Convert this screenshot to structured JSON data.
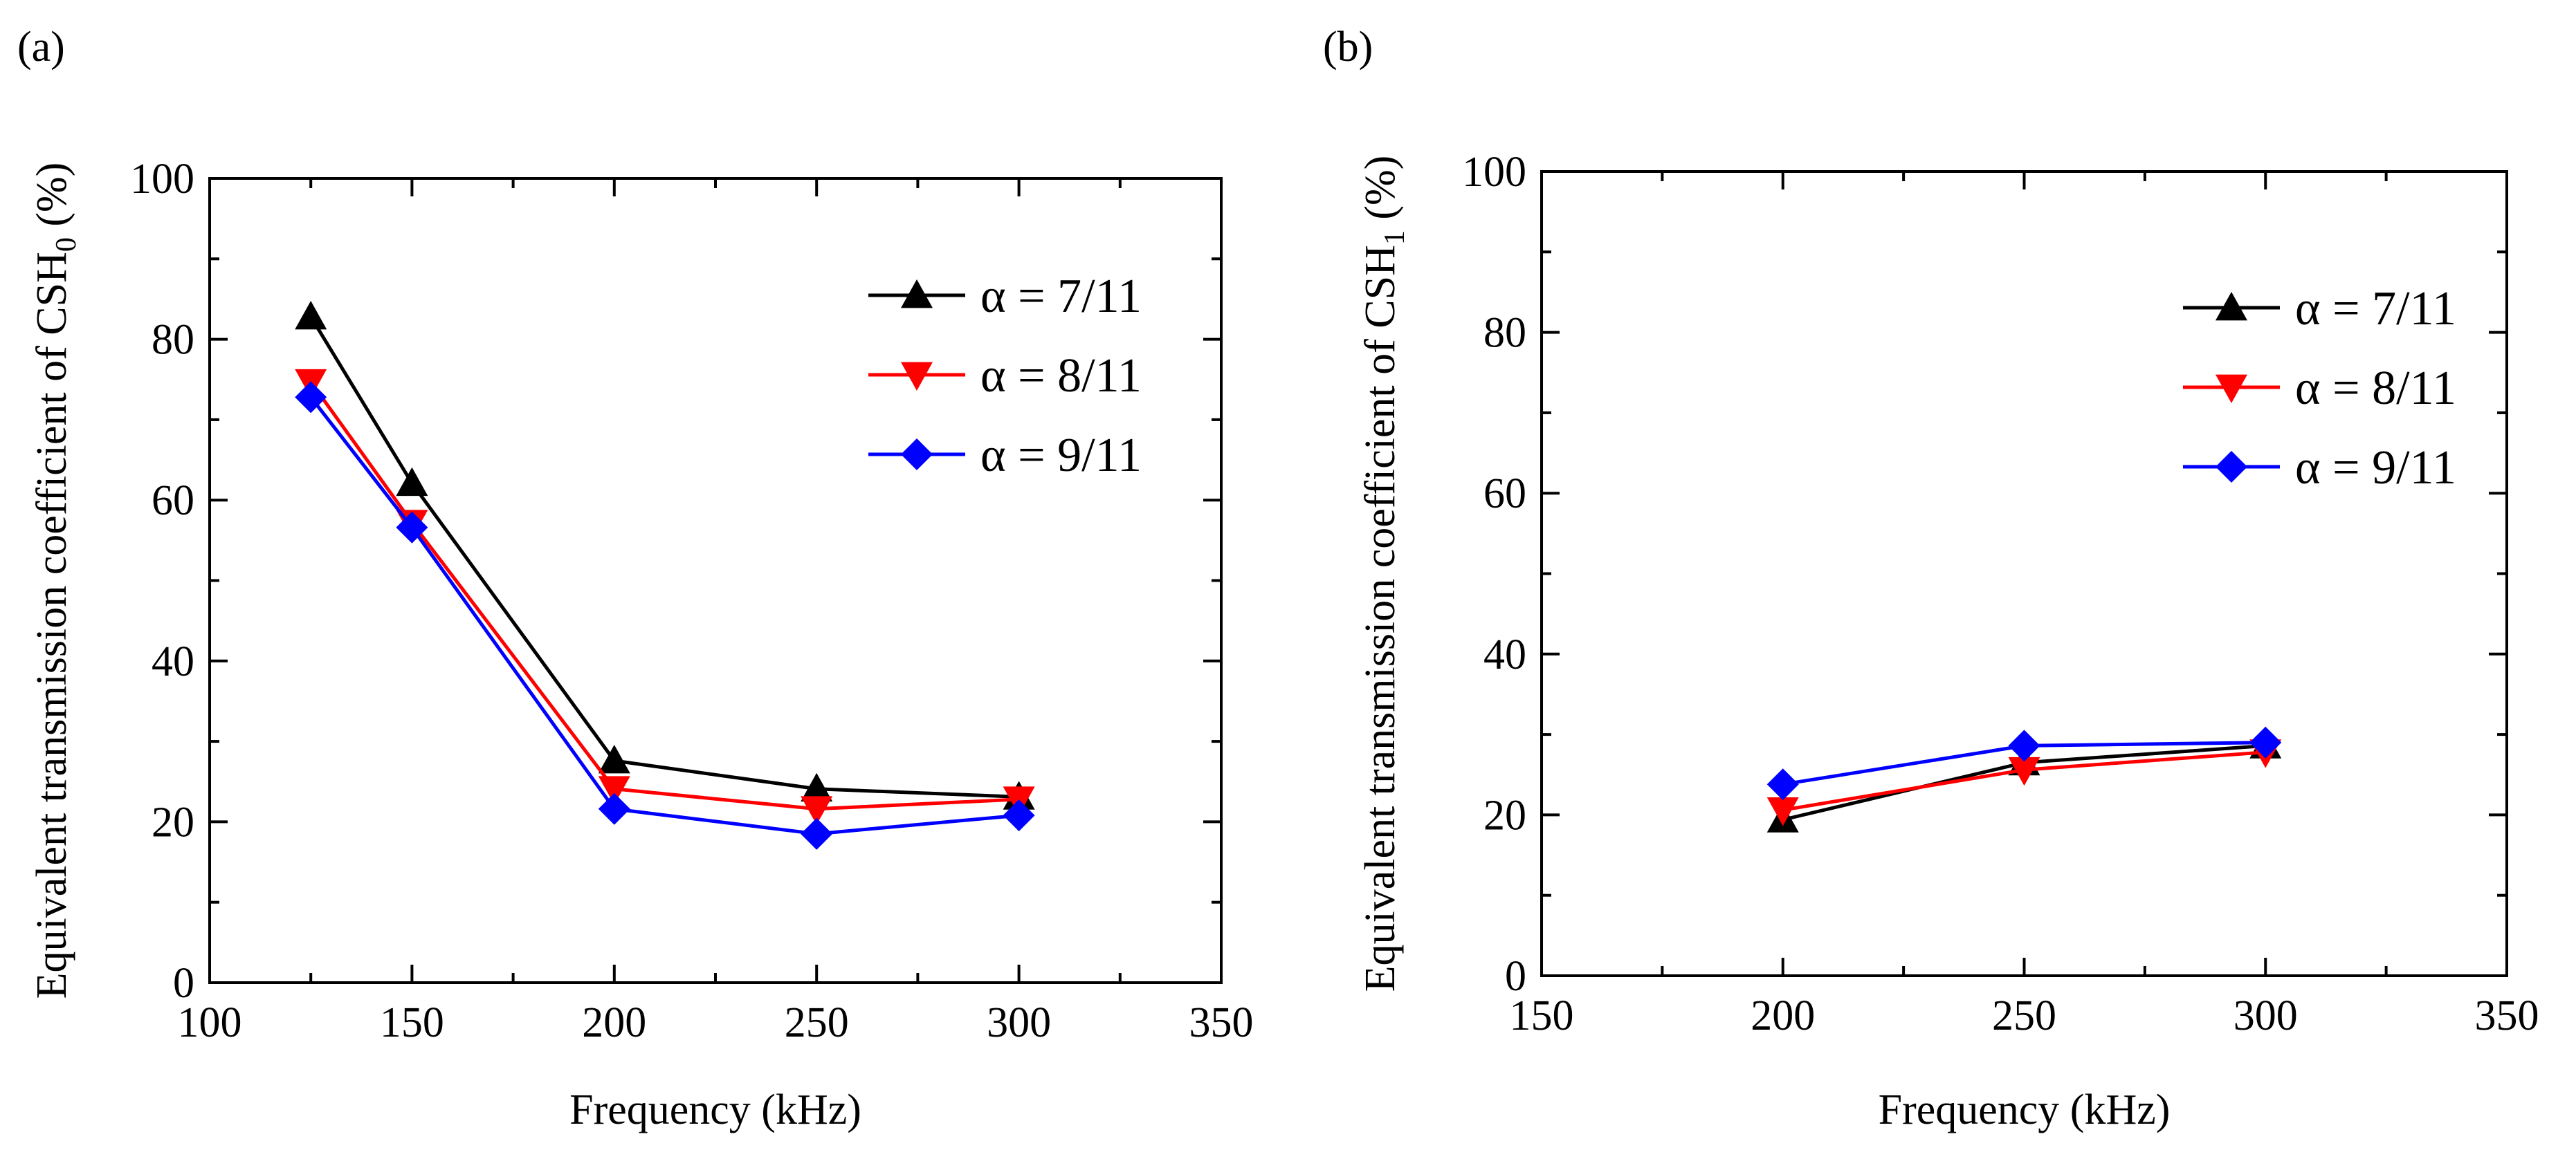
{
  "chart_data": [
    {
      "type": "line",
      "panel_label": "(a)",
      "xlabel": "Frequency (kHz)",
      "ylabel": "Equivalent transmission coefficient of CSH",
      "ylabel_sub": "0",
      "ylabel_suffix": " (%)",
      "xlim": [
        100,
        350
      ],
      "ylim": [
        0,
        100
      ],
      "xticks": [
        100,
        150,
        200,
        250,
        300,
        350
      ],
      "yticks": [
        0,
        20,
        40,
        60,
        80,
        100
      ],
      "grid": false,
      "legend_position": "top-right",
      "x": [
        125,
        150,
        200,
        250,
        300
      ],
      "series": [
        {
          "name": "α = 7/11",
          "color": "#000000",
          "marker": "triangle-up",
          "values": [
            82.8,
            62.1,
            27.6,
            24.1,
            23.1
          ]
        },
        {
          "name": "α = 8/11",
          "color": "#ff0000",
          "marker": "triangle-down",
          "values": [
            74.7,
            57.2,
            24.1,
            21.6,
            22.8
          ]
        },
        {
          "name": "α = 9/11",
          "color": "#0000ff",
          "marker": "diamond",
          "values": [
            72.8,
            56.6,
            21.6,
            18.5,
            20.8
          ]
        }
      ]
    },
    {
      "type": "line",
      "panel_label": "(b)",
      "xlabel": "Frequency (kHz)",
      "ylabel": "Equivalent transmission coefficient of CSH",
      "ylabel_sub": "1",
      "ylabel_suffix": " (%)",
      "xlim": [
        150,
        350
      ],
      "ylim": [
        0,
        100
      ],
      "xticks": [
        150,
        200,
        250,
        300,
        350
      ],
      "yticks": [
        0,
        20,
        40,
        60,
        80,
        100
      ],
      "grid": false,
      "legend_position": "top-right",
      "x": [
        200,
        250,
        300
      ],
      "series": [
        {
          "name": "α = 7/11",
          "color": "#000000",
          "marker": "triangle-up",
          "values": [
            19.4,
            26.5,
            28.6
          ]
        },
        {
          "name": "α = 8/11",
          "color": "#ff0000",
          "marker": "triangle-down",
          "values": [
            20.6,
            25.6,
            27.8
          ]
        },
        {
          "name": "α = 9/11",
          "color": "#0000ff",
          "marker": "diamond",
          "values": [
            23.8,
            28.6,
            29.0
          ]
        }
      ]
    }
  ]
}
